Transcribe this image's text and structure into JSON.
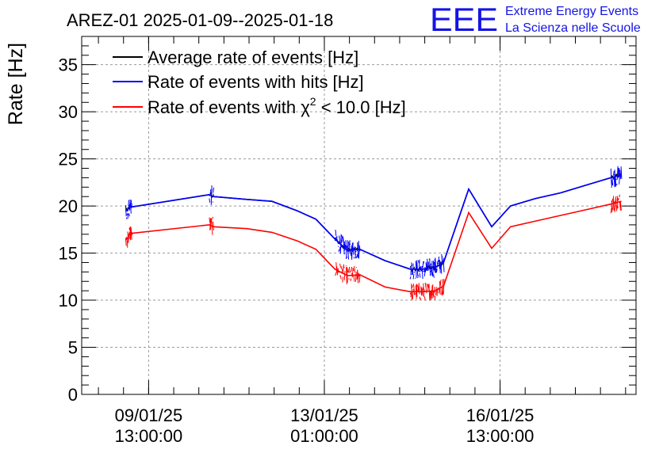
{
  "chart_data": {
    "type": "line",
    "title": "AREZ-01 2025-01-09--2025-01-18",
    "ylabel": "Rate [Hz]",
    "xlabel": "",
    "ylim": [
      0,
      38
    ],
    "y_ticks": [
      0,
      5,
      10,
      15,
      20,
      25,
      30,
      35
    ],
    "x_range": [
      "2025-01-08 05:00",
      "2025-01-19 06:00"
    ],
    "x_ticks": [
      {
        "x": "2025-01-09 13:00",
        "line1": "09/01/25",
        "line2": "13:00:00"
      },
      {
        "x": "2025-01-13 01:00",
        "line1": "13/01/25",
        "line2": "01:00:00"
      },
      {
        "x": "2025-01-16 13:00",
        "line1": "16/01/25",
        "line2": "13:00:00"
      }
    ],
    "grid": true,
    "legend_position": "top-left",
    "logo": {
      "letters": "EEE",
      "line1": "Extreme Energy Events",
      "line2": "La Scienza nelle Scuole",
      "color": "#1414e6"
    },
    "series": [
      {
        "name": "Average rate of events [Hz]",
        "color": "#000000",
        "x": [
          "2025-01-09 02:00",
          "2025-01-09 03:00",
          "2025-01-09 04:00",
          "2025-01-09 05:00",
          "2025-01-10 18:00",
          "2025-01-10 20:00",
          "2025-01-11 12:00",
          "2025-01-12 00:00",
          "2025-01-12 12:00",
          "2025-01-12 21:00",
          "2025-01-13 06:00",
          "2025-01-13 12:00",
          "2025-01-13 18:00",
          "2025-01-14 06:00",
          "2025-01-14 18:00",
          "2025-01-15 00:00",
          "2025-01-15 06:00",
          "2025-01-15 10:00",
          "2025-01-15 22:00",
          "2025-01-16 09:00",
          "2025-01-16 18:00",
          "2025-01-17 06:00",
          "2025-01-17 18:00",
          "2025-01-18 06:00",
          "2025-01-18 18:00",
          "2025-01-18 23:00"
        ],
        "y": [
          19.5,
          19.6,
          20.1,
          19.9,
          21.2,
          21.0,
          20.7,
          20.5,
          19.5,
          18.6,
          16.5,
          15.3,
          15.4,
          14.2,
          13.3,
          13.3,
          13.5,
          14.0,
          21.8,
          17.8,
          20.0,
          20.8,
          21.4,
          22.2,
          23.0,
          23.3
        ],
        "band": 0.3
      },
      {
        "name": "Rate of events with hits [Hz]",
        "color": "#0000ff",
        "x": [
          "2025-01-09 02:00",
          "2025-01-09 03:00",
          "2025-01-09 04:00",
          "2025-01-09 05:00",
          "2025-01-10 18:00",
          "2025-01-10 20:00",
          "2025-01-11 12:00",
          "2025-01-12 00:00",
          "2025-01-12 12:00",
          "2025-01-12 21:00",
          "2025-01-13 06:00",
          "2025-01-13 12:00",
          "2025-01-13 18:00",
          "2025-01-14 06:00",
          "2025-01-14 18:00",
          "2025-01-15 00:00",
          "2025-01-15 06:00",
          "2025-01-15 10:00",
          "2025-01-15 22:00",
          "2025-01-16 09:00",
          "2025-01-16 18:00",
          "2025-01-17 06:00",
          "2025-01-17 18:00",
          "2025-01-18 06:00",
          "2025-01-18 18:00",
          "2025-01-18 23:00"
        ],
        "y": [
          19.5,
          19.6,
          20.1,
          19.9,
          21.2,
          21.0,
          20.7,
          20.5,
          19.5,
          18.6,
          16.5,
          15.3,
          15.4,
          14.2,
          13.3,
          13.3,
          13.5,
          14.0,
          21.8,
          17.8,
          20.0,
          20.8,
          21.4,
          22.2,
          23.0,
          23.3
        ],
        "band": 1.1
      },
      {
        "name": "Rate of events with χ² < 10.0 [Hz]",
        "legend_prefix": "Rate of events with ",
        "legend_symbol": "χ",
        "legend_sup": "2",
        "legend_suffix": " < 10.0 [Hz]",
        "color": "#ff0000",
        "x": [
          "2025-01-09 02:00",
          "2025-01-09 03:00",
          "2025-01-09 04:00",
          "2025-01-09 05:00",
          "2025-01-10 18:00",
          "2025-01-10 20:00",
          "2025-01-11 12:00",
          "2025-01-12 00:00",
          "2025-01-12 12:00",
          "2025-01-12 21:00",
          "2025-01-13 06:00",
          "2025-01-13 12:00",
          "2025-01-13 18:00",
          "2025-01-14 06:00",
          "2025-01-14 18:00",
          "2025-01-15 00:00",
          "2025-01-15 06:00",
          "2025-01-15 10:00",
          "2025-01-15 22:00",
          "2025-01-16 09:00",
          "2025-01-16 18:00",
          "2025-01-17 06:00",
          "2025-01-17 18:00",
          "2025-01-18 06:00",
          "2025-01-18 18:00",
          "2025-01-18 23:00"
        ],
        "y": [
          16.4,
          16.6,
          17.2,
          17.1,
          18.0,
          17.8,
          17.6,
          17.2,
          16.3,
          15.4,
          13.3,
          12.6,
          12.7,
          11.4,
          10.9,
          10.9,
          11.0,
          11.5,
          19.3,
          15.5,
          17.8,
          18.4,
          19.0,
          19.6,
          20.2,
          20.5
        ],
        "band": 1.0
      }
    ]
  }
}
